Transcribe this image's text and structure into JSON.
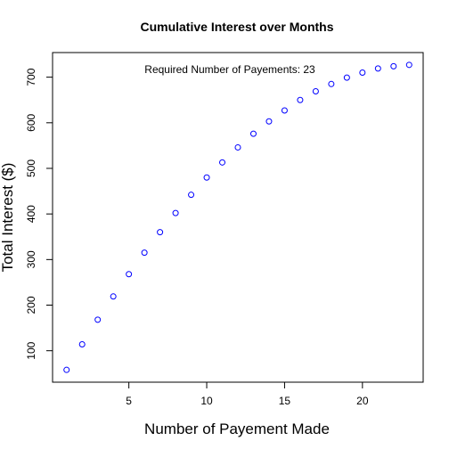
{
  "chart_data": {
    "type": "scatter",
    "title": "Cumulative Interest over Months",
    "xlabel": "Number of Payement Made",
    "ylabel": "Total Interest ($)",
    "annotation": "Required Number of Payements: 23",
    "x": [
      1,
      2,
      3,
      4,
      5,
      6,
      7,
      8,
      9,
      10,
      11,
      12,
      13,
      14,
      15,
      16,
      17,
      18,
      19,
      20,
      21,
      22,
      23
    ],
    "y": [
      58,
      114,
      168,
      219,
      268,
      315,
      360,
      402,
      442,
      480,
      513,
      546,
      576,
      603,
      627,
      650,
      669,
      685,
      699,
      710,
      719,
      724,
      727
    ],
    "xlim": [
      0.1,
      23.9
    ],
    "ylim": [
      31,
      754
    ],
    "xticks": [
      "5",
      "10",
      "15",
      "20"
    ],
    "yticks": [
      "100",
      "200",
      "300",
      "400",
      "500",
      "600",
      "700"
    ],
    "marker": "open-circle",
    "marker_color": "#0000ff",
    "grid": false,
    "legend": "none"
  }
}
